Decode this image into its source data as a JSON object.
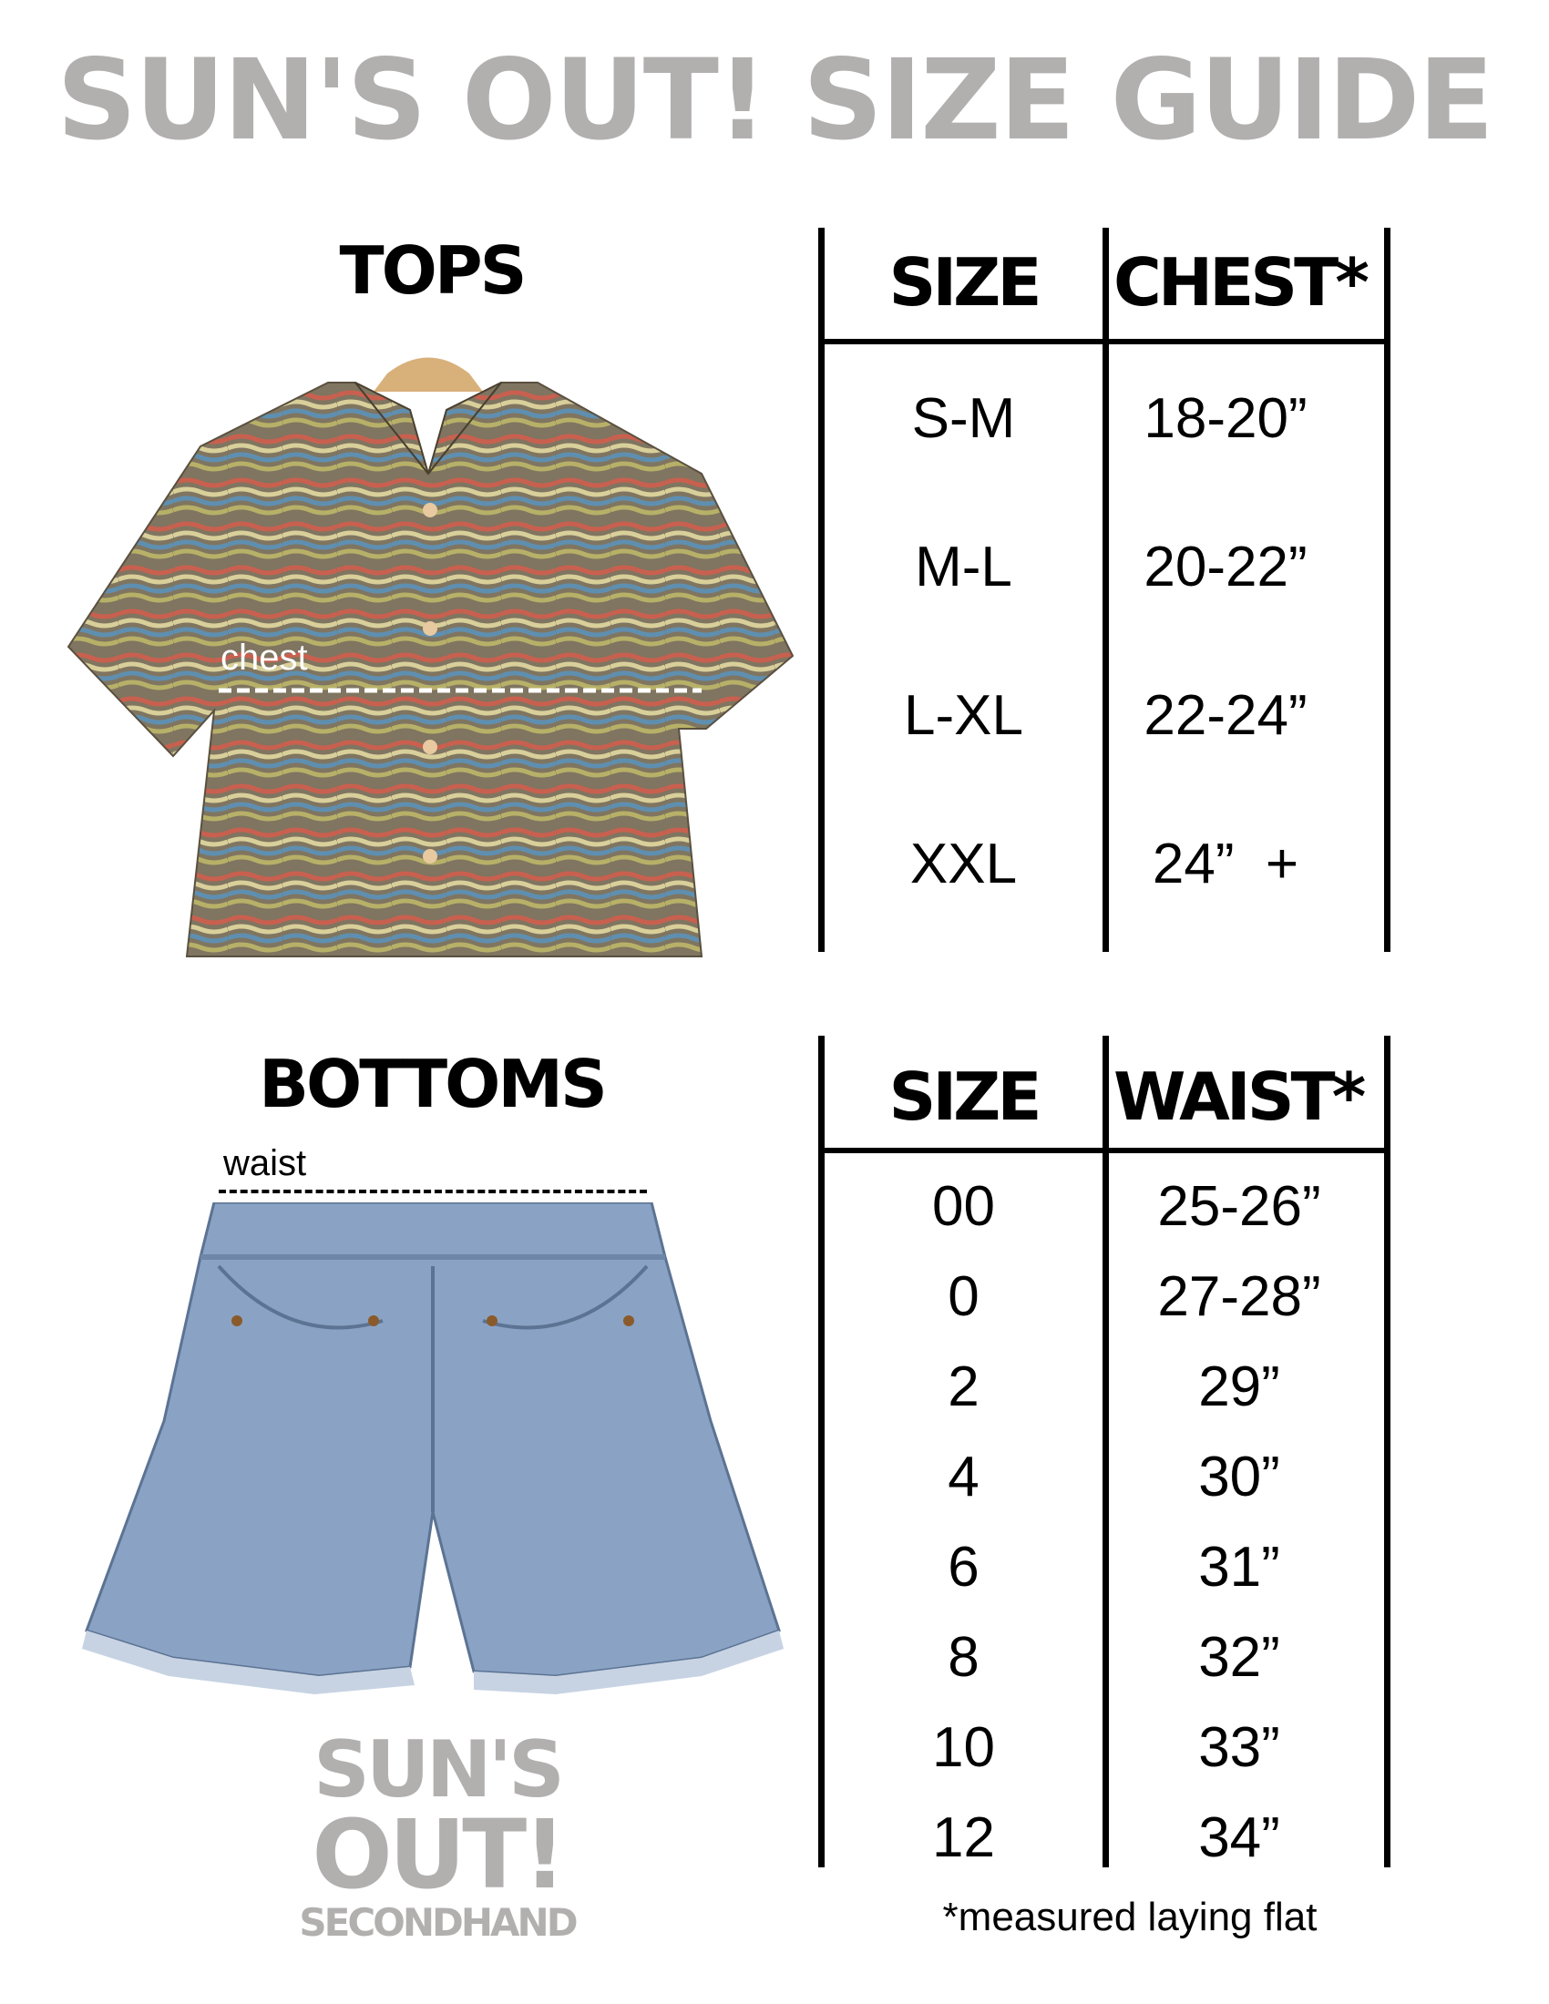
{
  "title": "SUN'S OUT! SIZE GUIDE",
  "tops": {
    "heading": "TOPS",
    "measure_label": "chest",
    "columns": [
      "SIZE",
      "CHEST*"
    ],
    "rows": [
      {
        "size": "S-M",
        "value": "18-20”"
      },
      {
        "size": "M-L",
        "value": "20-22”"
      },
      {
        "size": "L-XL",
        "value": "22-24”"
      },
      {
        "size": "XXL",
        "value": "24”  +"
      }
    ]
  },
  "bottoms": {
    "heading": "BOTTOMS",
    "measure_label": "waist",
    "columns": [
      "SIZE",
      "WAIST*"
    ],
    "rows": [
      {
        "size": "00",
        "value": "25-26”"
      },
      {
        "size": "0",
        "value": "27-28”"
      },
      {
        "size": "2",
        "value": "29”"
      },
      {
        "size": "4",
        "value": "30”"
      },
      {
        "size": "6",
        "value": "31”"
      },
      {
        "size": "8",
        "value": "32”"
      },
      {
        "size": "10",
        "value": "33”"
      },
      {
        "size": "12",
        "value": "34”"
      }
    ]
  },
  "footnote": "*measured laying flat",
  "logo": {
    "line1": "SUN'S",
    "line2": "OUT!",
    "line3": "SECONDHAND"
  },
  "colors": {
    "title_gray": "#b2afaf",
    "rule": "#000000",
    "denim": "#8aa3c4"
  }
}
